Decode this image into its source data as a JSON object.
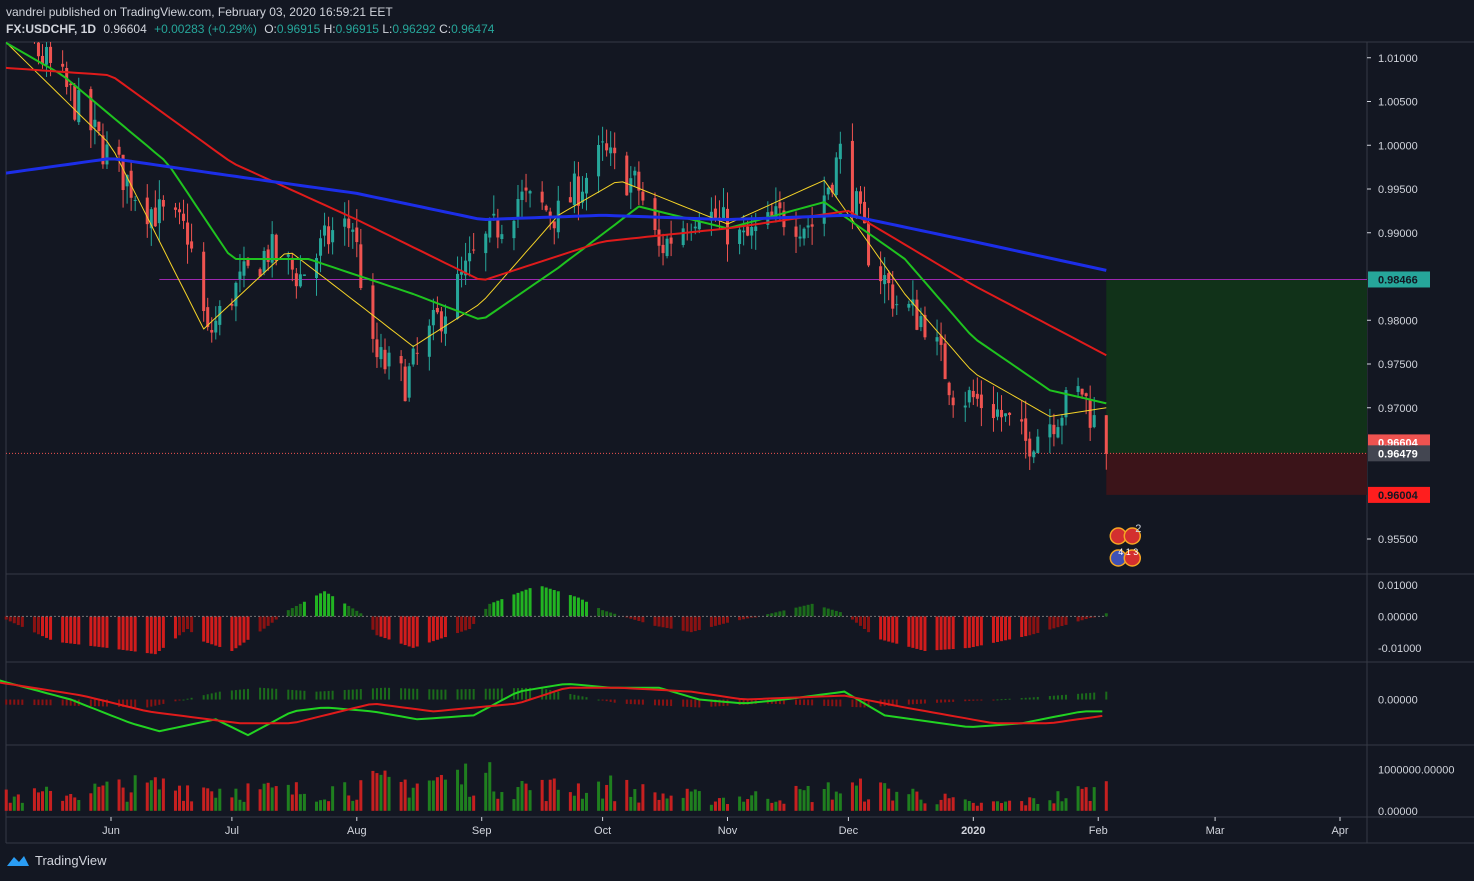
{
  "header": {
    "published": "vandrei published on TradingView.com, February 03, 2020 16:59:21 EET",
    "symbol": "FX:USDCHF, 1D",
    "price": "0.96604",
    "change": "+0.00283 (+0.29%)",
    "o_label": "O:",
    "o_value": "0.96915",
    "h_label": "H:",
    "h_value": "0.96915",
    "l_label": "L:",
    "l_value": "0.96292",
    "c_label": "C:",
    "c_value": "0.96474"
  },
  "footer": {
    "brand": "TradingView",
    "icon": "tradingview-logo-icon"
  },
  "colors": {
    "background": "#131722",
    "up": "#26a69a",
    "down": "#ef5350",
    "ma_fast": "#f5d327",
    "ma_mid": "#1fc31f",
    "ma_slow": "#e01b1b",
    "ma_long": "#1c2ee8",
    "level_line": "#9c27b0",
    "profit_zone": "#113219",
    "loss_zone": "#3b1419"
  },
  "chart_data": [
    {
      "type": "candlestick",
      "title": "FX:USDCHF, 1D",
      "x_labels": [
        "Jun",
        "Jul",
        "Aug",
        "Sep",
        "Oct",
        "Nov",
        "Dec",
        "2020",
        "Feb",
        "Mar",
        "Apr"
      ],
      "ylim": [
        0.951,
        1.0118
      ],
      "y_ticks": [
        "1.01000",
        "1.00500",
        "1.00000",
        "0.99500",
        "0.99000",
        "0.98000",
        "0.97500",
        "0.97000",
        "0.95500"
      ],
      "close_path": [
        [
          "2019-05-01",
          1.016
        ],
        [
          "2019-05-10",
          1.013
        ],
        [
          "2019-05-20",
          1.007
        ],
        [
          "2019-05-31",
          0.999
        ],
        [
          "2019-06-10",
          0.993
        ],
        [
          "2019-06-20",
          0.99
        ],
        [
          "2019-06-25",
          0.978
        ],
        [
          "2019-07-01",
          0.983
        ],
        [
          "2019-07-10",
          0.988
        ],
        [
          "2019-07-18",
          0.985
        ],
        [
          "2019-07-26",
          0.99
        ],
        [
          "2019-07-31",
          0.991
        ],
        [
          "2019-08-05",
          0.976
        ],
        [
          "2019-08-13",
          0.973
        ],
        [
          "2019-08-21",
          0.98
        ],
        [
          "2019-08-30",
          0.987
        ],
        [
          "2019-09-10",
          0.994
        ],
        [
          "2019-09-20",
          0.992
        ],
        [
          "2019-10-01",
          0.999
        ],
        [
          "2019-10-10",
          0.995
        ],
        [
          "2019-10-15",
          0.988
        ],
        [
          "2019-10-25",
          0.993
        ],
        [
          "2019-11-05",
          0.989
        ],
        [
          "2019-11-15",
          0.992
        ],
        [
          "2019-11-22",
          0.991
        ],
        [
          "2019-11-29",
          0.999
        ],
        [
          "2019-12-06",
          0.988
        ],
        [
          "2019-12-13",
          0.982
        ],
        [
          "2019-12-20",
          0.98
        ],
        [
          "2019-12-27",
          0.972
        ],
        [
          "2020-01-06",
          0.97
        ],
        [
          "2020-01-14",
          0.966
        ],
        [
          "2020-01-21",
          0.969
        ],
        [
          "2020-01-28",
          0.972
        ],
        [
          "2020-02-03",
          0.9647
        ]
      ],
      "moving_averages": [
        {
          "color": "#f5d327",
          "points": [
            [
              "2019-05-01",
              1.014
            ],
            [
              "2019-06-01",
              1.0
            ],
            [
              "2019-06-24",
              0.979
            ],
            [
              "2019-07-15",
              0.988
            ],
            [
              "2019-08-01",
              0.982
            ],
            [
              "2019-08-15",
              0.977
            ],
            [
              "2019-09-01",
              0.982
            ],
            [
              "2019-09-20",
              0.992
            ],
            [
              "2019-10-05",
              0.996
            ],
            [
              "2019-11-01",
              0.991
            ],
            [
              "2019-11-25",
              0.996
            ],
            [
              "2019-12-15",
              0.983
            ],
            [
              "2020-01-01",
              0.974
            ],
            [
              "2020-01-20",
              0.969
            ],
            [
              "2020-02-03",
              0.97
            ]
          ]
        },
        {
          "color": "#1fc31f",
          "points": [
            [
              "2019-05-01",
              1.013
            ],
            [
              "2019-05-20",
              1.008
            ],
            [
              "2019-06-15",
              0.998
            ],
            [
              "2019-07-01",
              0.987
            ],
            [
              "2019-07-20",
              0.987
            ],
            [
              "2019-08-15",
              0.983
            ],
            [
              "2019-09-01",
              0.98
            ],
            [
              "2019-09-20",
              0.986
            ],
            [
              "2019-10-10",
              0.993
            ],
            [
              "2019-11-01",
              0.9905
            ],
            [
              "2019-11-25",
              0.9935
            ],
            [
              "2019-12-15",
              0.987
            ],
            [
              "2020-01-01",
              0.978
            ],
            [
              "2020-01-20",
              0.972
            ],
            [
              "2020-02-03",
              0.9705
            ]
          ]
        },
        {
          "color": "#e01b1b",
          "points": [
            [
              "2019-05-01",
              1.009
            ],
            [
              "2019-06-01",
              1.008
            ],
            [
              "2019-07-01",
              0.998
            ],
            [
              "2019-08-01",
              0.9915
            ],
            [
              "2019-09-01",
              0.9845
            ],
            [
              "2019-10-01",
              0.989
            ],
            [
              "2019-11-01",
              0.9905
            ],
            [
              "2019-12-01",
              0.9925
            ],
            [
              "2020-01-01",
              0.984
            ],
            [
              "2020-02-03",
              0.976
            ]
          ]
        },
        {
          "color": "#1c2ee8",
          "points": [
            [
              "2019-05-01",
              0.9965
            ],
            [
              "2019-06-01",
              0.9985
            ],
            [
              "2019-07-01",
              0.9965
            ],
            [
              "2019-08-01",
              0.9945
            ],
            [
              "2019-09-01",
              0.9915
            ],
            [
              "2019-10-01",
              0.992
            ],
            [
              "2019-11-01",
              0.9915
            ],
            [
              "2019-12-01",
              0.992
            ],
            [
              "2020-01-01",
              0.989
            ],
            [
              "2020-02-03",
              0.9857
            ]
          ]
        }
      ],
      "horizontal_line": {
        "value": 0.98466,
        "from": "2019-06-13",
        "to": "2020-02-03",
        "color": "#9c27b0"
      },
      "position": {
        "entry": 0.96479,
        "target": 0.98466,
        "stop": 0.96004,
        "from": "2020-02-03",
        "to": "2020-04-25"
      },
      "price_tags": [
        {
          "label": "0.98466",
          "value": 0.98466,
          "bg": "#26a69a",
          "fg": "#131722"
        },
        {
          "label": "0.96604",
          "value": 0.96604,
          "bg": "#ef5350",
          "fg": "#ffffff"
        },
        {
          "label": "0.96479",
          "value": 0.96479,
          "bg": "#434651",
          "fg": "#ffffff"
        },
        {
          "label": "0.96004",
          "value": 0.96004,
          "bg": "#ff1e1e",
          "fg": "#131722"
        }
      ],
      "events": {
        "flag_count": "2",
        "time_label": "4 1 3",
        "icons": [
          "switzerland-flag-icon",
          "usa-flag-icon"
        ]
      }
    },
    {
      "type": "bar",
      "title": "",
      "ylim": [
        -0.0145,
        0.0135
      ],
      "y_ticks": [
        "0.01000",
        "0.00000",
        "-0.01000"
      ],
      "segments": [
        [
          "2019-04-30",
          0.004
        ],
        [
          "2019-05-06",
          -0.001
        ],
        [
          "2019-05-18",
          -0.008
        ],
        [
          "2019-05-31",
          -0.01
        ],
        [
          "2019-06-12",
          -0.012
        ],
        [
          "2019-06-20",
          -0.004
        ],
        [
          "2019-06-24",
          -0.008
        ],
        [
          "2019-07-01",
          -0.011
        ],
        [
          "2019-07-10",
          -0.003
        ],
        [
          "2019-07-15",
          0.002
        ],
        [
          "2019-07-24",
          0.008
        ],
        [
          "2019-08-02",
          0.001
        ],
        [
          "2019-08-06",
          -0.006
        ],
        [
          "2019-08-15",
          -0.01
        ],
        [
          "2019-08-29",
          -0.004
        ],
        [
          "2019-09-03",
          0.004
        ],
        [
          "2019-09-15",
          0.01
        ],
        [
          "2019-09-25",
          0.006
        ],
        [
          "2019-10-01",
          0.002
        ],
        [
          "2019-10-14",
          -0.003
        ],
        [
          "2019-10-23",
          -0.005
        ],
        [
          "2019-11-01",
          -0.002
        ],
        [
          "2019-11-12",
          0.001
        ],
        [
          "2019-11-22",
          0.004
        ],
        [
          "2019-11-30",
          0.001
        ],
        [
          "2019-12-08",
          -0.007
        ],
        [
          "2019-12-20",
          -0.011
        ],
        [
          "2019-12-31",
          -0.01
        ],
        [
          "2020-01-15",
          -0.006
        ],
        [
          "2020-02-03",
          0.001
        ]
      ]
    },
    {
      "type": "line",
      "title": "",
      "ylim": [
        -0.0115,
        0.0095
      ],
      "y_ticks": [
        "0.00000"
      ],
      "series": [
        {
          "color": "#22d322",
          "points": [
            [
              "2019-04-30",
              0.006
            ],
            [
              "2019-05-22",
              0.0
            ],
            [
              "2019-06-06",
              -0.006
            ],
            [
              "2019-06-13",
              -0.008
            ],
            [
              "2019-06-27",
              -0.005
            ],
            [
              "2019-07-05",
              -0.009
            ],
            [
              "2019-07-16",
              -0.003
            ],
            [
              "2019-07-24",
              -0.002
            ],
            [
              "2019-08-05",
              -0.003
            ],
            [
              "2019-08-16",
              -0.005
            ],
            [
              "2019-08-30",
              -0.004
            ],
            [
              "2019-09-10",
              0.002
            ],
            [
              "2019-09-22",
              0.004
            ],
            [
              "2019-10-03",
              0.003
            ],
            [
              "2019-10-15",
              0.003
            ],
            [
              "2019-10-25",
              0.0
            ],
            [
              "2019-11-05",
              -0.001
            ],
            [
              "2019-11-15",
              0.0
            ],
            [
              "2019-11-30",
              0.002
            ],
            [
              "2019-12-10",
              -0.004
            ],
            [
              "2019-12-31",
              -0.007
            ],
            [
              "2020-01-13",
              -0.006
            ],
            [
              "2020-01-28",
              -0.003
            ],
            [
              "2020-02-03",
              -0.003
            ]
          ]
        },
        {
          "color": "#e01b1b",
          "points": [
            [
              "2019-04-30",
              0.005
            ],
            [
              "2019-05-25",
              0.001
            ],
            [
              "2019-06-10",
              -0.003
            ],
            [
              "2019-07-03",
              -0.006
            ],
            [
              "2019-07-16",
              -0.006
            ],
            [
              "2019-08-05",
              -0.001
            ],
            [
              "2019-08-20",
              -0.003
            ],
            [
              "2019-09-10",
              -0.001
            ],
            [
              "2019-09-22",
              0.003
            ],
            [
              "2019-10-05",
              0.003
            ],
            [
              "2019-10-23",
              0.002
            ],
            [
              "2019-11-05",
              0.0
            ],
            [
              "2019-11-30",
              0.001
            ],
            [
              "2019-12-15",
              -0.002
            ],
            [
              "2020-01-06",
              -0.006
            ],
            [
              "2020-01-20",
              -0.006
            ],
            [
              "2020-02-03",
              -0.004
            ]
          ]
        }
      ],
      "histogram": [
        [
          "2019-04-30",
          -0.0012
        ],
        [
          "2019-05-20",
          -0.0015
        ],
        [
          "2019-06-10",
          -0.002
        ],
        [
          "2019-06-28",
          0.002
        ],
        [
          "2019-07-08",
          0.003
        ],
        [
          "2019-07-22",
          0.002
        ],
        [
          "2019-08-08",
          0.003
        ],
        [
          "2019-08-22",
          0.0025
        ],
        [
          "2019-09-15",
          0.003
        ],
        [
          "2019-10-05",
          -0.001
        ],
        [
          "2019-10-25",
          -0.002
        ],
        [
          "2019-11-10",
          -0.001
        ],
        [
          "2019-12-05",
          -0.002
        ],
        [
          "2019-12-20",
          -0.001
        ],
        [
          "2020-01-15",
          0.0005
        ],
        [
          "2020-02-03",
          0.002
        ]
      ]
    },
    {
      "type": "bar",
      "title": "",
      "ylim": [
        -150000,
        1600000
      ],
      "y_ticks": [
        "1000000.00000",
        "0.00000"
      ],
      "envelope": [
        [
          "2019-04-30",
          400000
        ],
        [
          "2019-05-15",
          500000
        ],
        [
          "2019-06-01",
          700000
        ],
        [
          "2019-06-15",
          800000
        ],
        [
          "2019-07-01",
          700000
        ],
        [
          "2019-07-15",
          600000
        ],
        [
          "2019-08-01",
          800000
        ],
        [
          "2019-08-15",
          900000
        ],
        [
          "2019-08-30",
          1100000
        ],
        [
          "2019-09-15",
          700000
        ],
        [
          "2019-10-01",
          800000
        ],
        [
          "2019-10-15",
          500000
        ],
        [
          "2019-11-01",
          400000
        ],
        [
          "2019-11-15",
          500000
        ],
        [
          "2019-12-01",
          700000
        ],
        [
          "2019-12-15",
          600000
        ],
        [
          "2020-01-01",
          200000
        ],
        [
          "2020-01-15",
          300000
        ],
        [
          "2020-02-03",
          700000
        ]
      ]
    }
  ]
}
